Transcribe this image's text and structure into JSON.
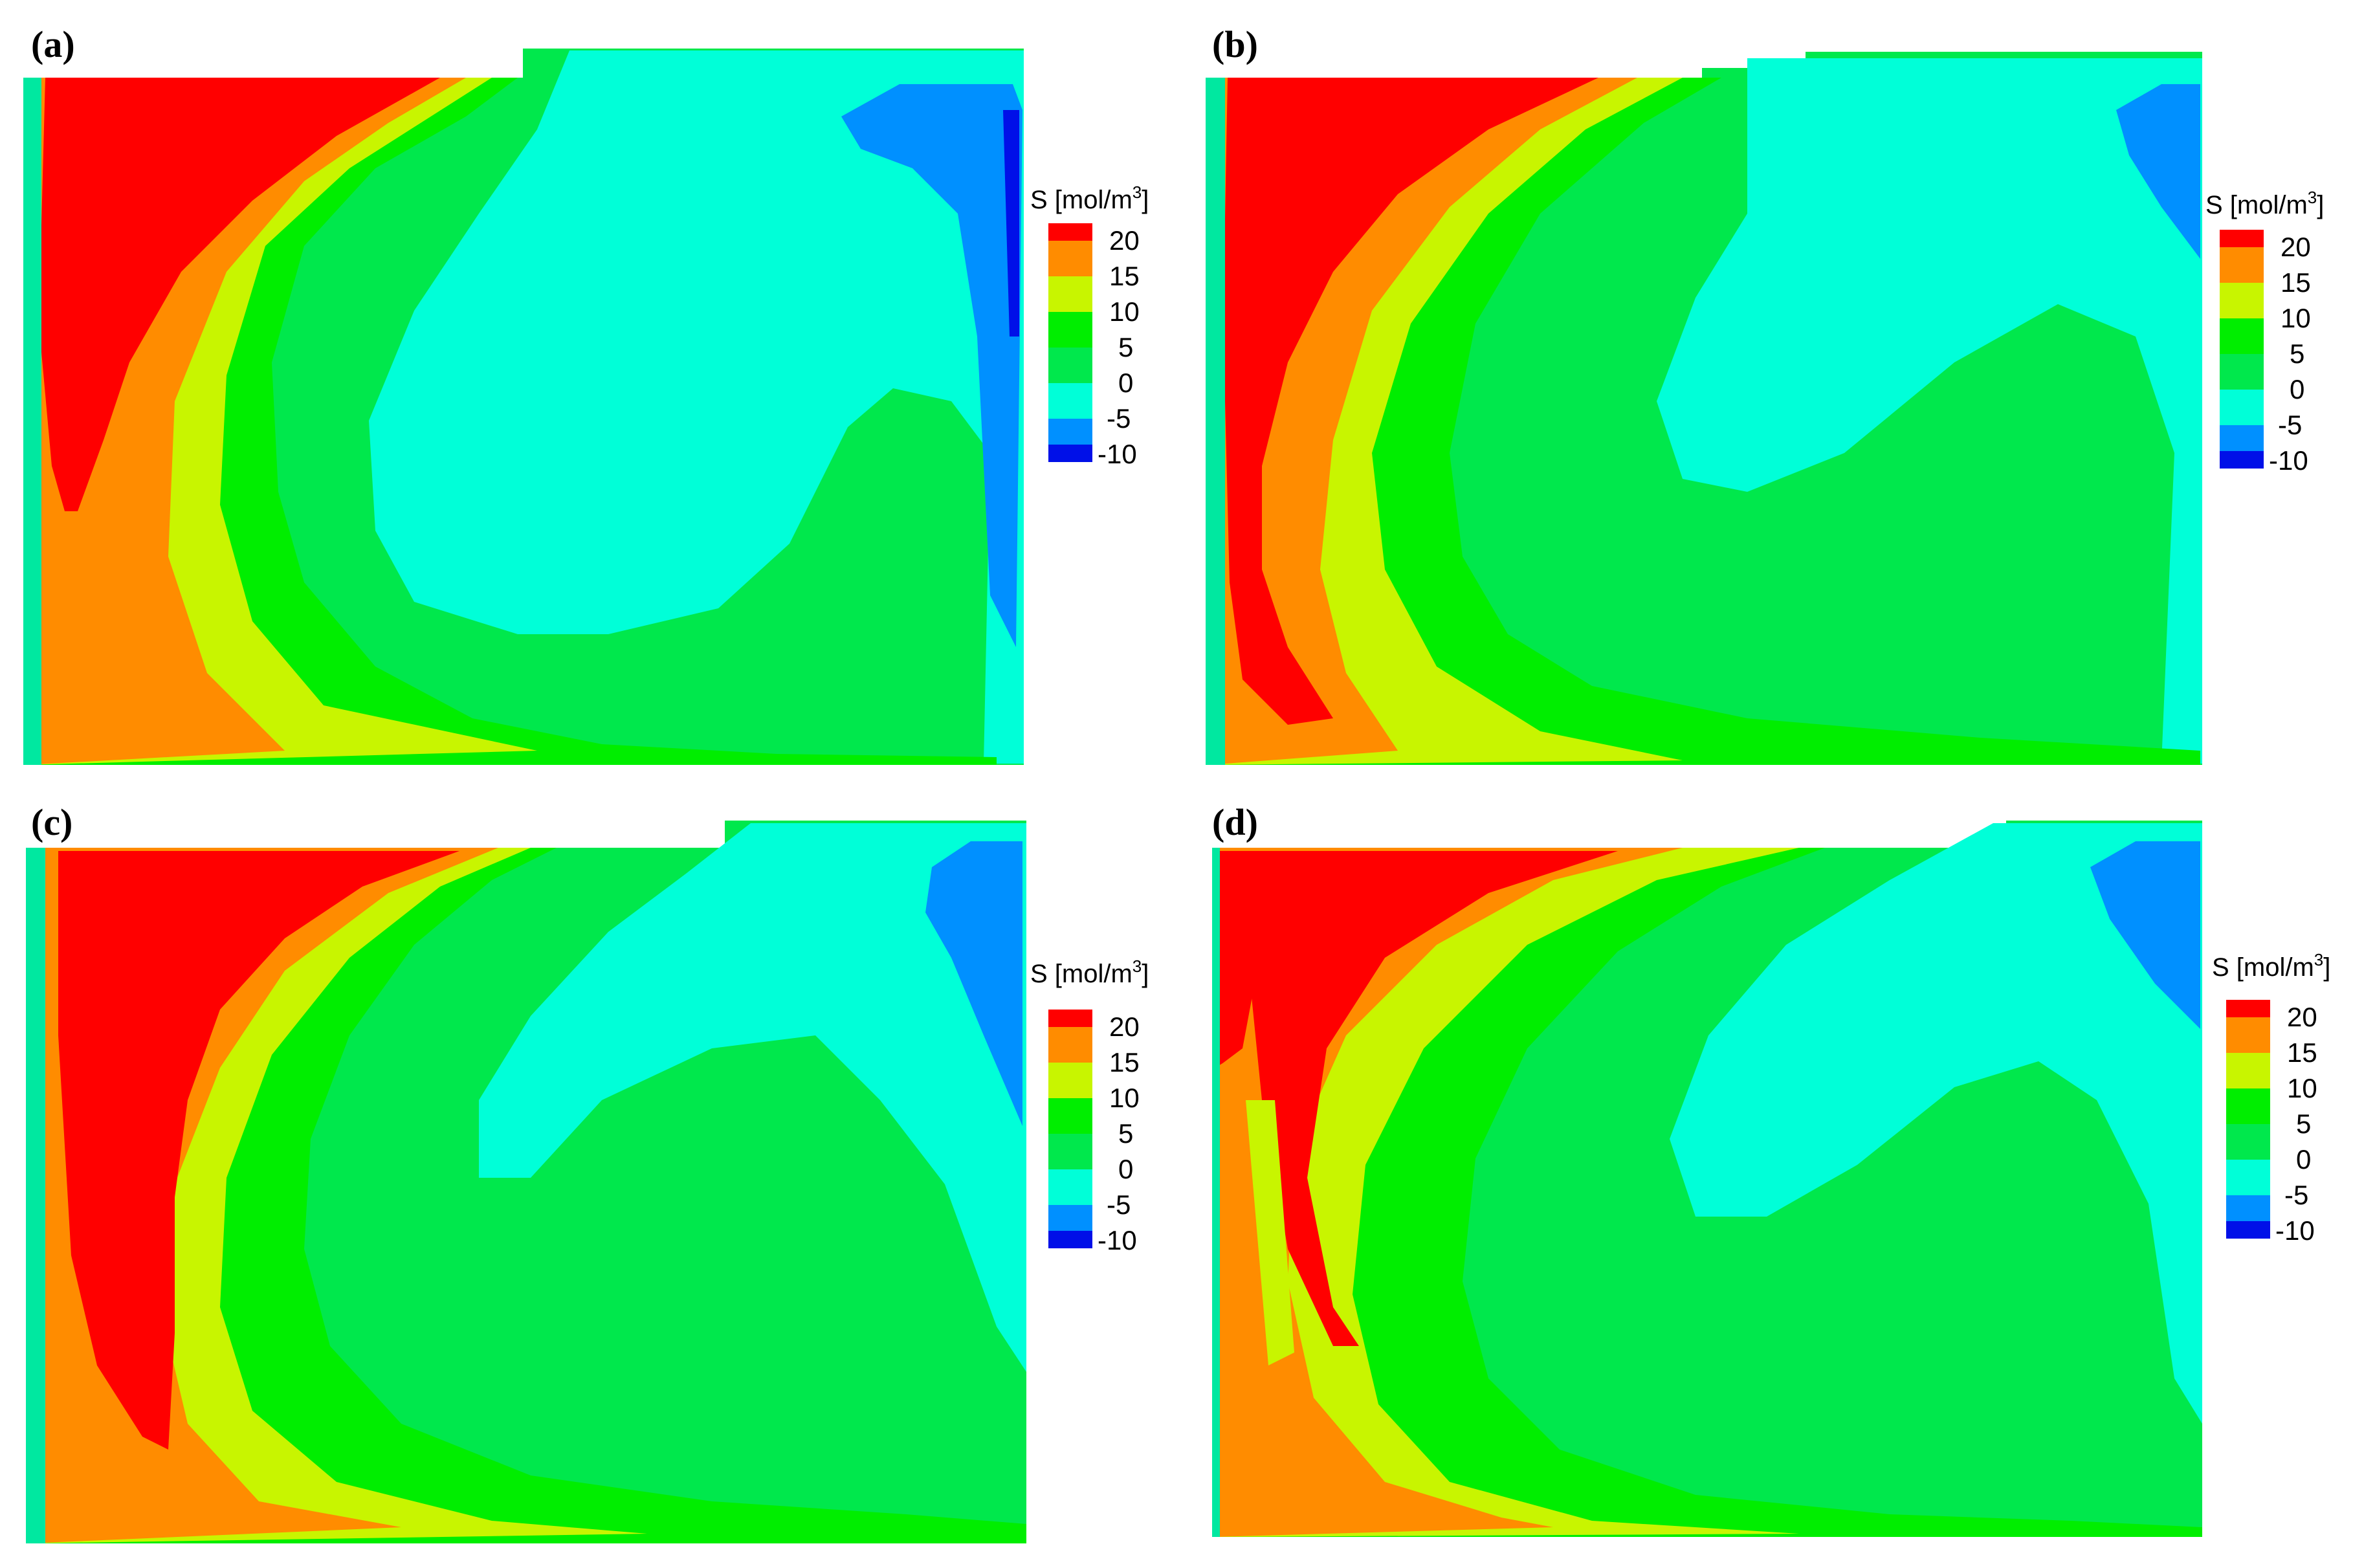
{
  "figure": {
    "colors": {
      "c20": "#ff0000",
      "c15": "#ff8c00",
      "c10": "#c8f500",
      "c5": "#00ee00",
      "c0": "#00e84c",
      "cm5": "#00ffd8",
      "cm10": "#0090ff",
      "cmin": "#0010e8",
      "border_lb": "#00e8a0"
    },
    "legend": {
      "title_prefix": "S [mol/m",
      "title_sup": "3",
      "title_suffix": "]",
      "ticks": [
        "20",
        "15",
        "10",
        "5",
        "0",
        "-5",
        "-10"
      ]
    },
    "panels": [
      {
        "label": "(a)"
      },
      {
        "label": "(b)"
      },
      {
        "label": "(c)"
      },
      {
        "label": "(d)"
      }
    ]
  }
}
